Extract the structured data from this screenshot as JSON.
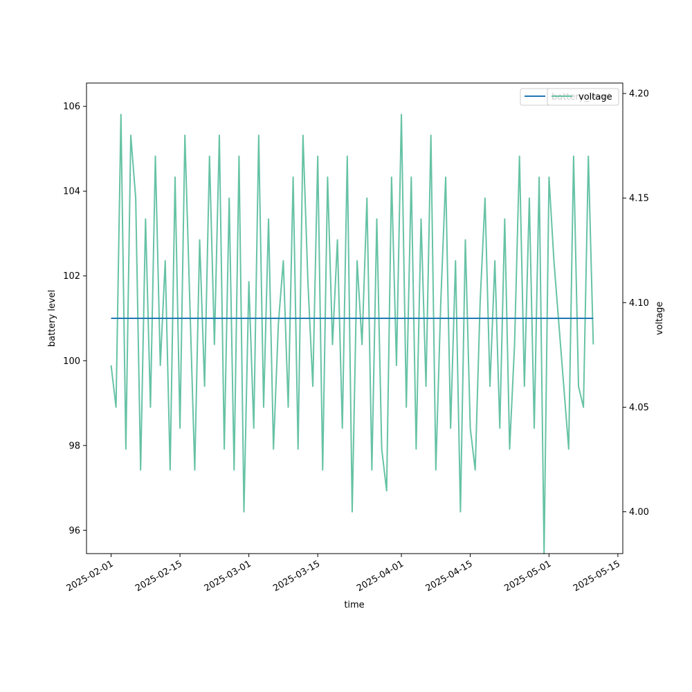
{
  "chart_data": {
    "type": "line",
    "xlabel": "time",
    "ylabel_left": "battery level",
    "ylabel_right": "voltage",
    "x_range": [
      "2025-01-27",
      "2025-05-16"
    ],
    "x_ticks": [
      "2025-02-01",
      "2025-02-15",
      "2025-03-01",
      "2025-03-15",
      "2025-04-01",
      "2025-04-15",
      "2025-05-01",
      "2025-05-15"
    ],
    "ylim_left": [
      95.45,
      106.55
    ],
    "yticks_left": [
      96,
      98,
      100,
      102,
      104,
      106
    ],
    "ylim_right": [
      3.98,
      4.205
    ],
    "yticks_right": [
      "4.00",
      "4.05",
      "4.10",
      "4.15",
      "4.20"
    ],
    "grid": false,
    "legend": {
      "placement": "top-right"
    },
    "series": [
      {
        "name": "battery_level",
        "axis": "left",
        "color": "#1f77b4",
        "x": [
          "2025-02-01",
          "2025-05-10"
        ],
        "values": [
          101,
          101
        ]
      },
      {
        "name": "voltage",
        "axis": "right",
        "color": "#66c2a5",
        "x": [
          "2025-02-01",
          "2025-02-02",
          "2025-02-03",
          "2025-02-04",
          "2025-02-05",
          "2025-02-06",
          "2025-02-07",
          "2025-02-08",
          "2025-02-09",
          "2025-02-10",
          "2025-02-11",
          "2025-02-12",
          "2025-02-13",
          "2025-02-14",
          "2025-02-15",
          "2025-02-16",
          "2025-02-17",
          "2025-02-18",
          "2025-02-19",
          "2025-02-20",
          "2025-02-21",
          "2025-02-22",
          "2025-02-23",
          "2025-02-24",
          "2025-02-25",
          "2025-02-26",
          "2025-02-27",
          "2025-02-28",
          "2025-03-01",
          "2025-03-02",
          "2025-03-03",
          "2025-03-04",
          "2025-03-05",
          "2025-03-06",
          "2025-03-07",
          "2025-03-08",
          "2025-03-09",
          "2025-03-10",
          "2025-03-11",
          "2025-03-12",
          "2025-03-13",
          "2025-03-14",
          "2025-03-15",
          "2025-03-16",
          "2025-03-17",
          "2025-03-18",
          "2025-03-19",
          "2025-03-20",
          "2025-03-21",
          "2025-03-22",
          "2025-03-23",
          "2025-03-24",
          "2025-03-25",
          "2025-03-26",
          "2025-03-27",
          "2025-03-28",
          "2025-03-29",
          "2025-03-30",
          "2025-03-31",
          "2025-04-01",
          "2025-04-02",
          "2025-04-03",
          "2025-04-04",
          "2025-04-05",
          "2025-04-06",
          "2025-04-07",
          "2025-04-08",
          "2025-04-09",
          "2025-04-10",
          "2025-04-11",
          "2025-04-12",
          "2025-04-13",
          "2025-04-14",
          "2025-04-15",
          "2025-04-16",
          "2025-04-17",
          "2025-04-18",
          "2025-04-19",
          "2025-04-20",
          "2025-04-21",
          "2025-04-22",
          "2025-04-23",
          "2025-04-24",
          "2025-04-25",
          "2025-04-26",
          "2025-04-27",
          "2025-04-28",
          "2025-04-29",
          "2025-04-30",
          "2025-05-01",
          "2025-05-02",
          "2025-05-03",
          "2025-05-04",
          "2025-05-05",
          "2025-05-06",
          "2025-05-07",
          "2025-05-08",
          "2025-05-09",
          "2025-05-10"
        ],
        "values": [
          4.07,
          4.05,
          4.19,
          4.03,
          4.18,
          4.15,
          4.02,
          4.14,
          4.05,
          4.17,
          4.07,
          4.12,
          4.02,
          4.16,
          4.04,
          4.18,
          4.1,
          4.02,
          4.13,
          4.06,
          4.17,
          4.08,
          4.18,
          4.03,
          4.15,
          4.02,
          4.17,
          4.0,
          4.11,
          4.04,
          4.18,
          4.05,
          4.14,
          4.03,
          4.09,
          4.12,
          4.05,
          4.16,
          4.03,
          4.18,
          4.11,
          4.06,
          4.17,
          4.02,
          4.16,
          4.08,
          4.13,
          4.04,
          4.17,
          4.0,
          4.12,
          4.08,
          4.15,
          4.02,
          4.14,
          4.03,
          4.01,
          4.16,
          4.07,
          4.19,
          4.05,
          4.16,
          4.03,
          4.14,
          4.06,
          4.18,
          4.02,
          4.1,
          4.16,
          4.04,
          4.12,
          4.0,
          4.13,
          4.04,
          4.02,
          4.1,
          4.15,
          4.06,
          4.12,
          4.04,
          4.14,
          4.03,
          4.08,
          4.17,
          4.06,
          4.15,
          4.04,
          4.16,
          3.98,
          4.16,
          4.12,
          4.09,
          4.06,
          4.03,
          4.17,
          4.06,
          4.05,
          4.17,
          4.08
        ]
      }
    ]
  }
}
